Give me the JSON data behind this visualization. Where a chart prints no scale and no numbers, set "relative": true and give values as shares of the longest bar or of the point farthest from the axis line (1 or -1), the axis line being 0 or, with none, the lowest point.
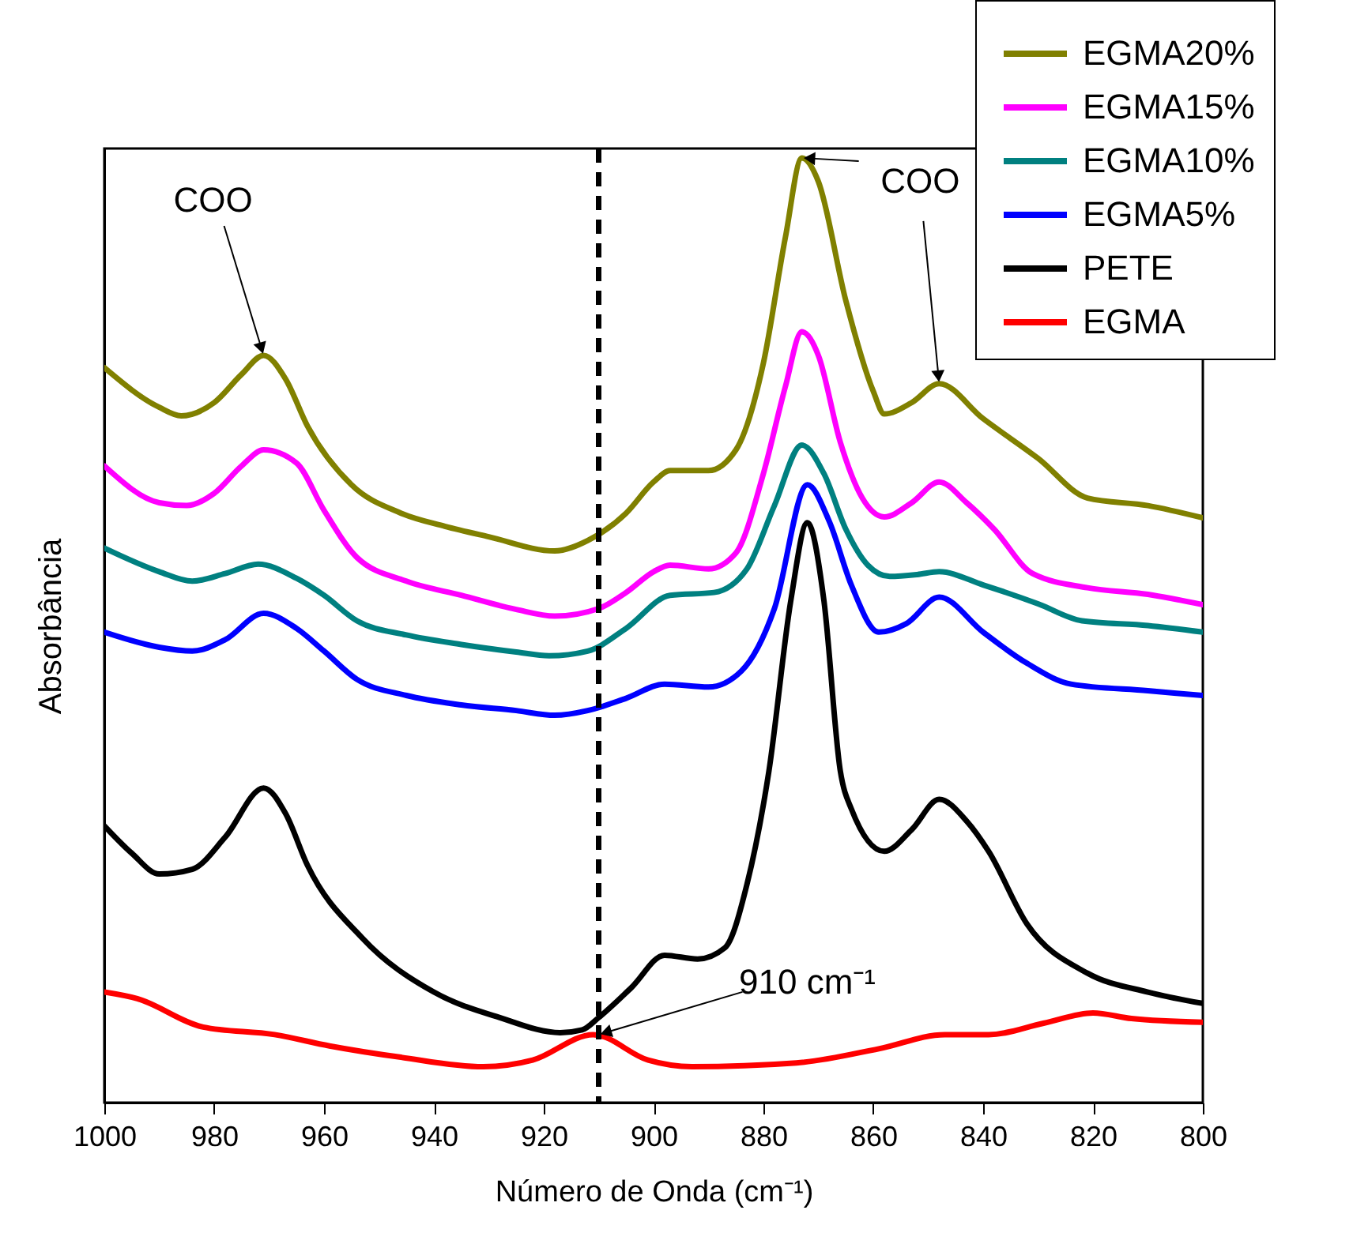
{
  "chart_data": {
    "type": "line",
    "relative": true,
    "xlabel": "Número de Onda (cm⁻¹)",
    "ylabel": "Absorbância",
    "xlim": [
      1000,
      800
    ],
    "xticks": [
      1000,
      980,
      960,
      940,
      920,
      900,
      880,
      860,
      840,
      820,
      800
    ],
    "legend": "top right",
    "grid": false,
    "series": [
      {
        "name": "EGMA20%",
        "color": "#808000",
        "x": [
          1000,
          990,
          986,
          980,
          975,
          971,
          967,
          963,
          955,
          946,
          938,
          930,
          918,
          912,
          905,
          900,
          897,
          890,
          885,
          880,
          876,
          873,
          870,
          865,
          860,
          858,
          853,
          848,
          840,
          830,
          821,
          810,
          800
        ],
        "values": [
          0.778,
          0.736,
          0.727,
          0.741,
          0.771,
          0.791,
          0.766,
          0.716,
          0.654,
          0.624,
          0.61,
          0.599,
          0.584,
          0.595,
          0.624,
          0.657,
          0.669,
          0.669,
          0.691,
          0.783,
          0.916,
          1,
          0.975,
          0.849,
          0.753,
          0.729,
          0.741,
          0.761,
          0.724,
          0.682,
          0.64,
          0.632,
          0.619
        ]
      },
      {
        "name": "EGMA15%",
        "color": "#ff00ff",
        "x": [
          1000,
          990,
          985,
          980,
          975,
          971,
          965,
          960,
          954,
          945,
          935,
          925,
          918,
          910,
          905,
          900,
          897,
          890,
          885,
          880,
          876,
          873,
          870,
          866,
          862,
          858,
          853,
          848,
          843,
          838,
          831,
          821,
          810,
          800
        ],
        "values": [
          0.674,
          0.635,
          0.632,
          0.645,
          0.674,
          0.691,
          0.677,
          0.627,
          0.577,
          0.552,
          0.537,
          0.522,
          0.515,
          0.523,
          0.54,
          0.562,
          0.569,
          0.565,
          0.582,
          0.666,
          0.758,
          0.816,
          0.791,
          0.699,
          0.64,
          0.62,
          0.635,
          0.657,
          0.635,
          0.607,
          0.56,
          0.545,
          0.538,
          0.527
        ]
      },
      {
        "name": "EGMA10%",
        "color": "#008080",
        "x": [
          1000,
          990,
          984,
          978,
          972,
          965,
          960,
          954,
          945,
          935,
          925,
          919,
          912,
          905,
          897,
          889,
          883,
          878,
          873,
          869,
          865,
          861,
          857,
          852,
          848,
          840,
          830,
          822,
          810,
          800
        ],
        "values": [
          0.587,
          0.562,
          0.552,
          0.56,
          0.57,
          0.555,
          0.537,
          0.51,
          0.495,
          0.485,
          0.477,
          0.473,
          0.478,
          0.502,
          0.537,
          0.54,
          0.565,
          0.632,
          0.696,
          0.666,
          0.607,
          0.569,
          0.557,
          0.559,
          0.562,
          0.548,
          0.528,
          0.51,
          0.505,
          0.498
        ]
      },
      {
        "name": "EGMA5%",
        "color": "#0000ff",
        "x": [
          1000,
          990,
          984,
          978,
          971,
          965,
          960,
          954,
          945,
          935,
          925,
          918,
          912,
          905,
          898,
          890,
          884,
          878,
          872,
          868,
          864,
          859,
          854,
          848,
          840,
          832,
          824,
          810,
          800
        ],
        "values": [
          0.498,
          0.482,
          0.478,
          0.49,
          0.518,
          0.502,
          0.478,
          0.448,
          0.431,
          0.421,
          0.415,
          0.41,
          0.415,
          0.428,
          0.443,
          0.44,
          0.457,
          0.523,
          0.654,
          0.615,
          0.548,
          0.498,
          0.507,
          0.535,
          0.498,
          0.465,
          0.443,
          0.436,
          0.431
        ]
      },
      {
        "name": "PETE",
        "color": "#000000",
        "x": [
          1000,
          995,
          990,
          984,
          978,
          971,
          967,
          963,
          953,
          940,
          928,
          917,
          913,
          910,
          904,
          898,
          892,
          887,
          883,
          879,
          875,
          872,
          869,
          866,
          864,
          858,
          853,
          848,
          843,
          839,
          832,
          821,
          810,
          800
        ],
        "values": [
          0.293,
          0.264,
          0.242,
          0.247,
          0.281,
          0.333,
          0.306,
          0.251,
          0.174,
          0.117,
          0.09,
          0.074,
          0.077,
          0.09,
          0.122,
          0.156,
          0.152,
          0.164,
          0.231,
          0.351,
          0.532,
          0.614,
          0.532,
          0.351,
          0.311,
          0.266,
          0.289,
          0.321,
          0.298,
          0.266,
          0.189,
          0.137,
          0.117,
          0.105
        ]
      },
      {
        "name": "EGMA",
        "color": "#ff0000",
        "x": [
          1000,
          994,
          982,
          969,
          959,
          946,
          931,
          922,
          911,
          901,
          893,
          874,
          859,
          847,
          839,
          829,
          820,
          813,
          800
        ],
        "values": [
          0.117,
          0.11,
          0.08,
          0.072,
          0.06,
          0.048,
          0.038,
          0.045,
          0.072,
          0.045,
          0.038,
          0.042,
          0.057,
          0.072,
          0.072,
          0.084,
          0.095,
          0.089,
          0.085
        ]
      }
    ],
    "ref_lines": [
      {
        "axis": "x",
        "value": 910,
        "line_style": "dashed",
        "color": "#000000"
      }
    ],
    "annotations": [
      {
        "text": "COO",
        "x": 971,
        "y": 0.791
      },
      {
        "text": "COO",
        "x": 848,
        "y": 0.761
      },
      {
        "text": "910 cm⁻¹",
        "x": 910,
        "y": 0.072
      }
    ]
  }
}
